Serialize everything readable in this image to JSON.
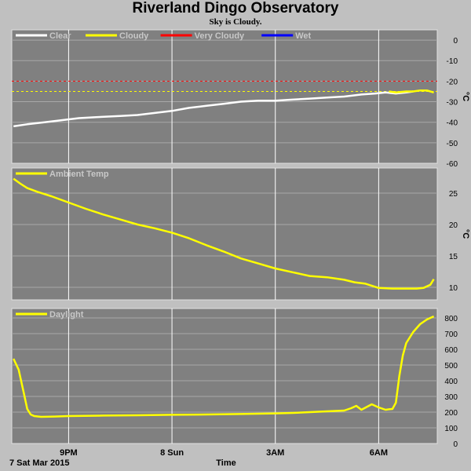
{
  "header": {
    "title": "Riverland Dingo Observatory",
    "subtitle": "Sky is Cloudy."
  },
  "colors": {
    "panel_bg": "#808080",
    "clear": "#ffffff",
    "cloudy": "#ffff00",
    "very_cloudy": "#ff0000",
    "wet": "#0000ff"
  },
  "x_axis": {
    "label": "Time",
    "date_label": "7 Sat Mar 2015",
    "ticks": [
      "9PM",
      "8 Sun",
      "3AM",
      "6AM"
    ],
    "tick_hours": [
      21,
      24,
      27,
      30
    ],
    "range_hours": [
      19.35,
      31.7
    ]
  },
  "chart_data": [
    {
      "type": "line",
      "name": "sky",
      "legend": [
        "Clear",
        "Cloudy",
        "Very Cloudy",
        "Wet"
      ],
      "ylabel": "°C",
      "ylim": [
        -60,
        5
      ],
      "yticks": [
        0,
        -10,
        -20,
        -30,
        -40,
        -50,
        -60
      ],
      "thresholds": [
        {
          "value": -20,
          "color": "#ff0000",
          "dashed": true
        },
        {
          "value": -25,
          "color": "#ffff00",
          "dashed": true
        }
      ],
      "series": [
        {
          "name": "Clear",
          "color": "#ffffff",
          "x": [
            19.4,
            19.8,
            20.3,
            20.8,
            21.3,
            21.8,
            22.5,
            23.0,
            23.5,
            24.0,
            24.5,
            25.0,
            25.5,
            26.0,
            26.5,
            27.0,
            27.5,
            28.0,
            28.5,
            29.0,
            29.5,
            29.9,
            30.2,
            30.5,
            30.8,
            31.0
          ],
          "y": [
            -42,
            -41,
            -40,
            -39,
            -38,
            -37.5,
            -37,
            -36.5,
            -35.5,
            -34.5,
            -33,
            -32,
            -31,
            -30,
            -29.5,
            -29.5,
            -29,
            -28.5,
            -28,
            -27.5,
            -26.5,
            -26,
            -25.5,
            -26,
            -25.5,
            -25
          ]
        },
        {
          "name": "Cloudy",
          "color": "#ffff00",
          "x": [
            30.3,
            30.5,
            30.8,
            31.0,
            31.2,
            31.4,
            31.6
          ],
          "y": [
            -25,
            -25.5,
            -25,
            -25,
            -24.5,
            -24.5,
            -25.5
          ]
        }
      ]
    },
    {
      "type": "line",
      "name": "ambient",
      "legend": [
        "Ambient Temp"
      ],
      "ylabel": "°C",
      "ylim": [
        8,
        29
      ],
      "yticks": [
        25,
        20,
        15,
        10
      ],
      "series": [
        {
          "name": "Ambient Temp",
          "color": "#ffff00",
          "x": [
            19.4,
            19.6,
            19.8,
            20.1,
            20.5,
            21.0,
            21.5,
            22.0,
            22.5,
            23.0,
            23.5,
            24.0,
            24.5,
            25.0,
            25.5,
            26.0,
            26.5,
            27.0,
            27.5,
            28.0,
            28.5,
            29.0,
            29.3,
            29.6,
            30.0,
            30.4,
            30.8,
            31.1,
            31.3,
            31.5,
            31.6
          ],
          "y": [
            27.3,
            26.5,
            25.8,
            25.2,
            24.5,
            23.5,
            22.5,
            21.6,
            20.8,
            20.0,
            19.4,
            18.7,
            17.8,
            16.7,
            15.7,
            14.6,
            13.8,
            13.0,
            12.4,
            11.8,
            11.6,
            11.2,
            10.8,
            10.6,
            9.9,
            9.8,
            9.8,
            9.8,
            9.9,
            10.4,
            11.3
          ]
        }
      ]
    },
    {
      "type": "line",
      "name": "daylight",
      "legend": [
        "Daylight"
      ],
      "ylabel": "",
      "ylim": [
        0,
        860
      ],
      "yticks": [
        800,
        700,
        600,
        500,
        400,
        300,
        200,
        100,
        0
      ],
      "series": [
        {
          "name": "Daylight",
          "color": "#ffff00",
          "x": [
            19.4,
            19.55,
            19.7,
            19.8,
            19.9,
            20.0,
            20.2,
            20.6,
            21.0,
            22.0,
            23.0,
            24.0,
            25.0,
            26.0,
            27.0,
            27.5,
            28.0,
            28.5,
            29.0,
            29.2,
            29.35,
            29.5,
            29.8,
            30.0,
            30.2,
            30.3,
            30.4,
            30.5,
            30.6,
            30.7,
            30.8,
            31.0,
            31.2,
            31.4,
            31.6
          ],
          "y": [
            540,
            470,
            320,
            220,
            185,
            175,
            170,
            172,
            175,
            178,
            180,
            183,
            185,
            188,
            192,
            195,
            200,
            205,
            210,
            225,
            240,
            215,
            250,
            230,
            215,
            218,
            220,
            260,
            430,
            560,
            640,
            710,
            760,
            790,
            810
          ]
        }
      ]
    }
  ]
}
